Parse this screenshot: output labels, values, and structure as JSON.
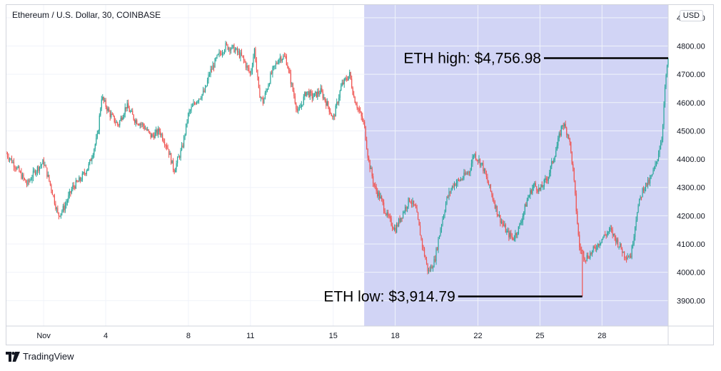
{
  "header": {
    "symbol_title": "Ethereum / U.S. Dollar, 30, COINBASE",
    "currency": "USD"
  },
  "branding": {
    "name": "TradingView",
    "icon": "tradingview-logo-icon"
  },
  "colors": {
    "up": "#26a69a",
    "down": "#ef5350",
    "highlight": "#d1d4f5",
    "annotation_line": "#000000",
    "grid": "#f0f3fa"
  },
  "chart_data": {
    "type": "candlestick",
    "title": "Ethereum / U.S. Dollar, 30, COINBASE",
    "ylabel": "USD",
    "ylim": [
      3810,
      4945
    ],
    "yticks": [
      3900,
      4000,
      4100,
      4200,
      4300,
      4400,
      4500,
      4600,
      4700,
      4800,
      4900
    ],
    "ytick_labels": [
      "3900.00",
      "4000.00",
      "4100.00",
      "4200.00",
      "4300.00",
      "4400.00",
      "4500.00",
      "4600.00",
      "4700.00",
      "4800.00",
      "4900.00"
    ],
    "x_unit": "days since chart start (Nov 1 = 0)",
    "xlim": [
      -1.8,
      30.2
    ],
    "xticks": [
      {
        "x": 0,
        "label": "Nov"
      },
      {
        "x": 3,
        "label": "4"
      },
      {
        "x": 7,
        "label": "8"
      },
      {
        "x": 10,
        "label": "11"
      },
      {
        "x": 14,
        "label": "15"
      },
      {
        "x": 17,
        "label": "18"
      },
      {
        "x": 21,
        "label": "22"
      },
      {
        "x": 24,
        "label": "25"
      },
      {
        "x": 27,
        "label": "28"
      }
    ],
    "highlight_range": {
      "from": 15.5,
      "to": 30.2
    },
    "grid": true,
    "price_path": [
      [
        -1.8,
        4420
      ],
      [
        -1.4,
        4380
      ],
      [
        -0.8,
        4310
      ],
      [
        -0.4,
        4360
      ],
      [
        0.0,
        4390
      ],
      [
        0.4,
        4290
      ],
      [
        0.7,
        4200
      ],
      [
        1.0,
        4230
      ],
      [
        1.4,
        4300
      ],
      [
        1.8,
        4330
      ],
      [
        2.2,
        4380
      ],
      [
        2.6,
        4480
      ],
      [
        2.8,
        4620
      ],
      [
        3.2,
        4560
      ],
      [
        3.6,
        4520
      ],
      [
        4.0,
        4590
      ],
      [
        4.4,
        4540
      ],
      [
        4.8,
        4520
      ],
      [
        5.2,
        4480
      ],
      [
        5.6,
        4500
      ],
      [
        6.0,
        4440
      ],
      [
        6.3,
        4360
      ],
      [
        6.7,
        4440
      ],
      [
        7.0,
        4560
      ],
      [
        7.4,
        4610
      ],
      [
        7.8,
        4640
      ],
      [
        8.0,
        4700
      ],
      [
        8.4,
        4760
      ],
      [
        8.8,
        4800
      ],
      [
        9.2,
        4790
      ],
      [
        9.6,
        4760
      ],
      [
        10.0,
        4700
      ],
      [
        10.2,
        4790
      ],
      [
        10.4,
        4640
      ],
      [
        10.6,
        4600
      ],
      [
        11.0,
        4700
      ],
      [
        11.4,
        4760
      ],
      [
        11.7,
        4760
      ],
      [
        12.0,
        4660
      ],
      [
        12.3,
        4560
      ],
      [
        12.7,
        4640
      ],
      [
        13.0,
        4620
      ],
      [
        13.4,
        4640
      ],
      [
        13.8,
        4580
      ],
      [
        14.0,
        4540
      ],
      [
        14.4,
        4660
      ],
      [
        14.8,
        4700
      ],
      [
        15.0,
        4620
      ],
      [
        15.2,
        4580
      ],
      [
        15.5,
        4520
      ],
      [
        15.7,
        4400
      ],
      [
        16.0,
        4300
      ],
      [
        16.3,
        4260
      ],
      [
        16.6,
        4200
      ],
      [
        17.0,
        4150
      ],
      [
        17.3,
        4200
      ],
      [
        17.7,
        4260
      ],
      [
        18.0,
        4220
      ],
      [
        18.3,
        4100
      ],
      [
        18.6,
        4000
      ],
      [
        18.9,
        4040
      ],
      [
        19.2,
        4160
      ],
      [
        19.5,
        4260
      ],
      [
        19.8,
        4310
      ],
      [
        20.2,
        4330
      ],
      [
        20.6,
        4360
      ],
      [
        20.8,
        4420
      ],
      [
        21.2,
        4380
      ],
      [
        21.6,
        4290
      ],
      [
        22.0,
        4200
      ],
      [
        22.4,
        4140
      ],
      [
        22.7,
        4120
      ],
      [
        23.0,
        4160
      ],
      [
        23.4,
        4260
      ],
      [
        23.7,
        4310
      ],
      [
        24.0,
        4290
      ],
      [
        24.4,
        4340
      ],
      [
        24.8,
        4440
      ],
      [
        25.1,
        4530
      ],
      [
        25.4,
        4480
      ],
      [
        25.6,
        4360
      ],
      [
        25.9,
        4090
      ],
      [
        26.2,
        4050
      ],
      [
        26.5,
        4070
      ],
      [
        27.0,
        4120
      ],
      [
        27.4,
        4150
      ],
      [
        27.8,
        4100
      ],
      [
        28.1,
        4060
      ],
      [
        28.4,
        4060
      ],
      [
        28.7,
        4220
      ],
      [
        29.0,
        4300
      ],
      [
        29.3,
        4320
      ],
      [
        29.6,
        4380
      ],
      [
        29.9,
        4480
      ],
      [
        30.0,
        4600
      ],
      [
        30.1,
        4700
      ],
      [
        30.2,
        4740
      ]
    ],
    "annotations": [
      {
        "label": "ETH high: $4,756.98",
        "value": 4756.98,
        "x": 30.2,
        "label_anchor": "above"
      },
      {
        "label": "ETH low: $3,914.79",
        "value": 3914.79,
        "x": 26.05,
        "label_anchor": "below"
      }
    ]
  }
}
